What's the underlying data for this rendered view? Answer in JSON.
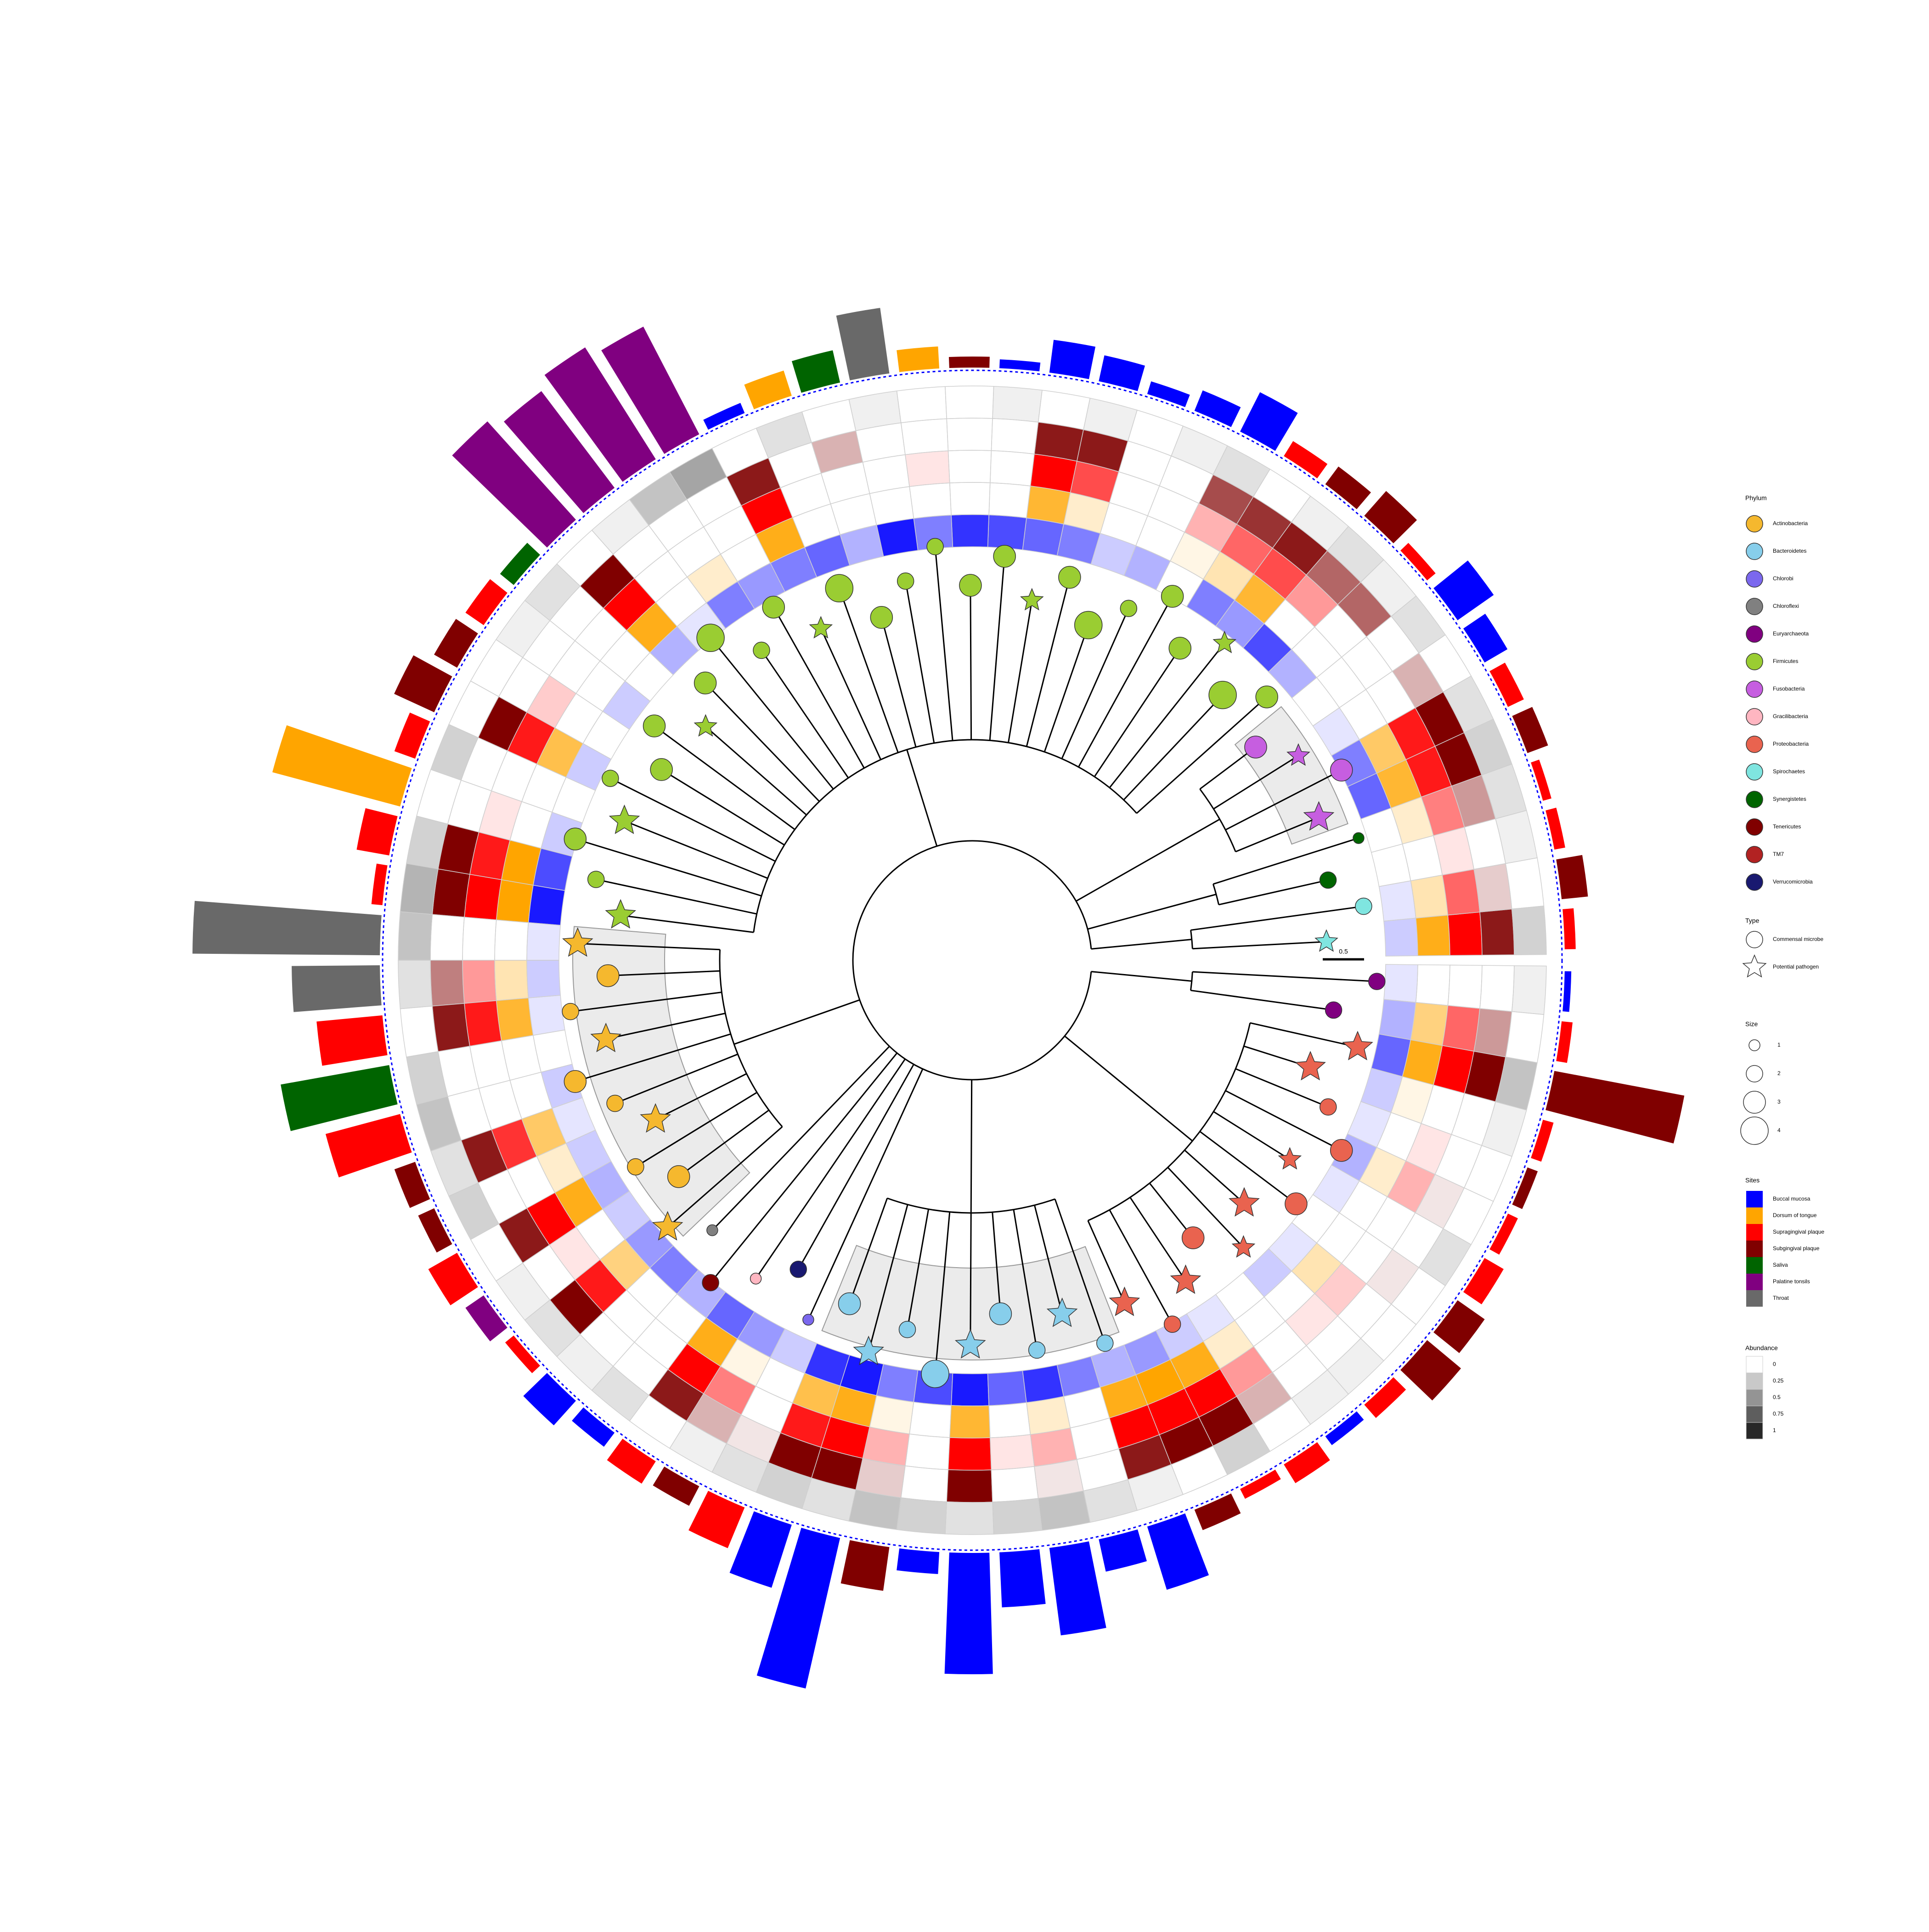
{
  "chart_data": {
    "type": "circular-tree",
    "phyla": [
      {
        "name": "Actinobacteria",
        "color": "#f5b82e"
      },
      {
        "name": "Bacteroidetes",
        "color": "#87ceeb"
      },
      {
        "name": "Chlorobi",
        "color": "#7b68ee"
      },
      {
        "name": "Chloroflexi",
        "color": "#808080"
      },
      {
        "name": "Euryarchaeota",
        "color": "#800080"
      },
      {
        "name": "Firmicutes",
        "color": "#9acd32"
      },
      {
        "name": "Fusobacteria",
        "color": "#c65ee0"
      },
      {
        "name": "Gracilibacteria",
        "color": "#ffb6c1"
      },
      {
        "name": "Proteobacteria",
        "color": "#e9634f"
      },
      {
        "name": "Spirochaetes",
        "color": "#7fe5e0"
      },
      {
        "name": "Synergistetes",
        "color": "#006400"
      },
      {
        "name": "Tenericutes",
        "color": "#800000"
      },
      {
        "name": "TM7",
        "color": "#b22222"
      },
      {
        "name": "Verrucomicrobia",
        "color": "#191970"
      }
    ],
    "types": [
      "Commensal microbe",
      "Potential pathogen"
    ],
    "sizes": [
      1,
      2,
      3,
      4
    ],
    "sites": [
      {
        "name": "Buccal mucosa",
        "color": "#0000ff"
      },
      {
        "name": "Dorsum of tongue",
        "color": "#ffa500"
      },
      {
        "name": "Supragingival plaque",
        "color": "#ff0000"
      },
      {
        "name": "Subgingival plaque",
        "color": "#800000"
      },
      {
        "name": "Saliva",
        "color": "#006400"
      },
      {
        "name": "Palatine tonsils",
        "color": "#800080"
      },
      {
        "name": "Throat",
        "color": "#696969"
      }
    ],
    "heat_sites": [
      0,
      1,
      2,
      3,
      6
    ],
    "abundance_ticks": [
      0,
      0.25,
      0.5,
      0.75,
      1
    ],
    "legend_titles": {
      "phylum": "Phylum",
      "type": "Type",
      "size": "Size",
      "sites": "Sites",
      "abundance": "Abundance"
    },
    "scale_label": "0.5",
    "tip_phylum": [
      9,
      9,
      10,
      10,
      6,
      6,
      6,
      6,
      5,
      5,
      5,
      5,
      5,
      5,
      5,
      5,
      5,
      5,
      5,
      5,
      5,
      5,
      5,
      5,
      5,
      5,
      5,
      5,
      5,
      5,
      5,
      5,
      5,
      5,
      5,
      5,
      0,
      0,
      0,
      0,
      0,
      0,
      0,
      0,
      0,
      0,
      3,
      11,
      7,
      13,
      2,
      1,
      1,
      1,
      1,
      1,
      1,
      1,
      1,
      1,
      8,
      8,
      8,
      8,
      8,
      8,
      8,
      8,
      8,
      8,
      8,
      8,
      4,
      4
    ],
    "tip_type": [
      1,
      0,
      0,
      0,
      1,
      0,
      1,
      0,
      0,
      0,
      1,
      0,
      0,
      0,
      0,
      0,
      1,
      0,
      0,
      0,
      0,
      0,
      0,
      1,
      0,
      0,
      0,
      0,
      1,
      0,
      0,
      0,
      1,
      0,
      0,
      1,
      1,
      0,
      0,
      1,
      0,
      0,
      1,
      0,
      0,
      1,
      0,
      0,
      0,
      0,
      0,
      0,
      1,
      0,
      0,
      1,
      0,
      0,
      1,
      0,
      1,
      0,
      1,
      0,
      1,
      1,
      0,
      1,
      0,
      0,
      1,
      1,
      0,
      0
    ],
    "tip_size": [
      2,
      2,
      2,
      1,
      3,
      3,
      2,
      3,
      3,
      4,
      2,
      3,
      3,
      2,
      4,
      3,
      2,
      3,
      3,
      2,
      2,
      3,
      4,
      2,
      3,
      2,
      4,
      3,
      2,
      3,
      3,
      2,
      3,
      3,
      2,
      3,
      3,
      3,
      2,
      3,
      3,
      2,
      3,
      2,
      3,
      3,
      1,
      2,
      1,
      2,
      1,
      3,
      3,
      2,
      4,
      3,
      3,
      2,
      3,
      2,
      3,
      2,
      3,
      3,
      2,
      3,
      3,
      2,
      3,
      2,
      3,
      3,
      2,
      2
    ],
    "bar_site": [
      2,
      3,
      2,
      2,
      3,
      2,
      0,
      0,
      2,
      3,
      3,
      2,
      0,
      0,
      0,
      0,
      0,
      0,
      3,
      1,
      6,
      4,
      1,
      0,
      5,
      5,
      5,
      5,
      4,
      2,
      3,
      3,
      2,
      1,
      2,
      2,
      6,
      6,
      2,
      4,
      2,
      3,
      3,
      2,
      5,
      2,
      0,
      0,
      2,
      3,
      2,
      0,
      0,
      3,
      0,
      0,
      0,
      0,
      0,
      0,
      3,
      2,
      2,
      0,
      2,
      3,
      3,
      2,
      2,
      3,
      2,
      3,
      2,
      0
    ],
    "bar_value": [
      0.05,
      0.12,
      0.05,
      0.04,
      0.1,
      0.08,
      0.12,
      0.2,
      0.05,
      0.15,
      0.1,
      0.08,
      0.2,
      0.1,
      0.06,
      0.12,
      0.15,
      0.04,
      0.05,
      0.1,
      0.3,
      0.15,
      0.12,
      0.05,
      0.55,
      0.6,
      0.55,
      0.6,
      0.08,
      0.1,
      0.12,
      0.2,
      0.1,
      0.6,
      0.15,
      0.05,
      0.85,
      0.4,
      0.3,
      0.5,
      0.35,
      0.1,
      0.08,
      0.15,
      0.1,
      0.05,
      0.15,
      0.08,
      0.12,
      0.1,
      0.2,
      0.3,
      0.7,
      0.2,
      0.1,
      0.55,
      0.25,
      0.4,
      0.15,
      0.3,
      0.1,
      0.05,
      0.1,
      0.05,
      0.08,
      0.2,
      0.15,
      0.1,
      0.05,
      0.05,
      0.05,
      0.6,
      0.05,
      0.03
    ],
    "heat": [
      [
        0.2,
        0.9,
        1,
        0.9,
        0.3
      ],
      [
        0.1,
        0.3,
        0.6,
        0.2,
        0
      ],
      [
        0,
        0,
        0.1,
        0,
        0.1
      ],
      [
        0,
        0.2,
        0.5,
        0.4,
        0.2
      ],
      [
        0.6,
        0.8,
        0.9,
        1,
        0.3
      ],
      [
        0.5,
        0.6,
        0.9,
        1,
        0.2
      ],
      [
        0.1,
        0,
        0,
        0.3,
        0
      ],
      [
        0,
        0,
        0,
        0,
        0.2
      ],
      [
        0.3,
        0,
        0,
        0.6,
        0.1
      ],
      [
        0.7,
        0,
        0.4,
        0.6,
        0.2
      ],
      [
        0.4,
        0.8,
        0.7,
        0.9,
        0.1
      ],
      [
        0.5,
        0.3,
        0.6,
        0.8,
        0
      ],
      [
        0,
        0.1,
        0.3,
        0.7,
        0.2
      ],
      [
        0.3,
        0,
        0,
        0,
        0.1
      ],
      [
        0.2,
        0,
        0,
        0,
        0
      ],
      [
        0.5,
        0.2,
        0.7,
        0.9,
        0.1
      ],
      [
        0.6,
        0.8,
        1,
        0.9,
        0
      ],
      [
        0.7,
        0,
        0,
        0,
        0.1
      ],
      [
        0.8,
        0,
        0,
        0,
        0
      ],
      [
        0.5,
        0,
        0.1,
        0,
        0
      ],
      [
        0.9,
        0,
        0,
        0,
        0.1
      ],
      [
        0.3,
        0,
        0,
        0.3,
        0
      ],
      [
        0.6,
        0,
        0,
        0,
        0.2
      ],
      [
        0.5,
        0.9,
        1,
        0.9,
        0
      ],
      [
        0.4,
        0,
        0,
        0,
        0.6
      ],
      [
        0.5,
        0.2,
        0,
        0,
        0.4
      ],
      [
        0.1,
        0,
        0,
        0,
        0.1
      ],
      [
        0.3,
        0.9,
        1,
        1,
        0
      ],
      [
        0,
        0,
        0,
        0,
        0.2
      ],
      [
        0.2,
        0,
        0,
        0,
        0.1
      ],
      [
        0,
        0,
        0.2,
        0,
        0
      ],
      [
        0.2,
        0.7,
        0.9,
        1,
        0
      ],
      [
        0,
        0,
        0,
        0,
        0.3
      ],
      [
        0.2,
        0,
        0.1,
        0,
        0
      ],
      [
        0.7,
        1,
        0.9,
        1,
        0.3
      ],
      [
        0.9,
        1,
        1,
        1,
        0.5
      ],
      [
        0.1,
        0,
        0,
        0,
        0.4
      ],
      [
        0.2,
        0.3,
        0.4,
        0.5,
        0.2
      ],
      [
        0.1,
        0.8,
        0.9,
        0.9,
        0
      ],
      [
        0,
        0,
        0,
        0,
        0.3
      ],
      [
        0.2,
        0,
        0,
        0,
        0.4
      ],
      [
        0.1,
        0.6,
        0.8,
        0.9,
        0.2
      ],
      [
        0.2,
        0.2,
        0,
        0,
        0.3
      ],
      [
        0.3,
        0.9,
        1,
        0.9,
        0
      ],
      [
        0.2,
        0,
        0.1,
        0,
        0.1
      ],
      [
        0.4,
        0.5,
        0.9,
        1,
        0.2
      ],
      [
        0.5,
        0,
        0,
        0,
        0.1
      ],
      [
        0.3,
        0,
        0,
        0,
        0.2
      ],
      [
        0.6,
        0.9,
        1,
        0.9,
        0
      ],
      [
        0.4,
        0.1,
        0.5,
        0.3,
        0.1
      ],
      [
        0.2,
        0,
        0,
        0.1,
        0.2
      ],
      [
        0.8,
        0.7,
        0.9,
        1,
        0.3
      ],
      [
        0.9,
        0.9,
        1,
        1,
        0.2
      ],
      [
        0.5,
        0.1,
        0.3,
        0.2,
        0.4
      ],
      [
        0.7,
        0,
        0,
        0,
        0.3
      ],
      [
        0.9,
        0.8,
        1,
        1,
        0.2
      ],
      [
        0.6,
        0,
        0.1,
        0,
        0.3
      ],
      [
        0.8,
        0.2,
        0.3,
        0.1,
        0.4
      ],
      [
        0.5,
        0,
        0,
        0,
        0.2
      ],
      [
        0.3,
        0.9,
        1,
        0.9,
        0.1
      ],
      [
        0.4,
        1,
        1,
        1,
        0
      ],
      [
        0.2,
        0.9,
        1,
        1,
        0.3
      ],
      [
        0.1,
        0.2,
        0.4,
        0.3,
        0
      ],
      [
        0,
        0,
        0,
        0,
        0.1
      ],
      [
        0.2,
        0,
        0.1,
        0,
        0.1
      ],
      [
        0.1,
        0.3,
        0.2,
        0,
        0
      ],
      [
        0,
        0,
        0,
        0.1,
        0
      ],
      [
        0.1,
        0,
        0,
        0,
        0.2
      ],
      [
        0.3,
        0.2,
        0.3,
        0.1,
        0
      ],
      [
        0.1,
        0,
        0.1,
        0,
        0
      ],
      [
        0.2,
        0.1,
        0,
        0,
        0.1
      ],
      [
        0.6,
        0.9,
        1,
        1,
        0.4
      ],
      [
        0.3,
        0.5,
        0.6,
        0.4,
        0
      ],
      [
        0.1,
        0,
        0,
        0,
        0.1
      ]
    ]
  }
}
